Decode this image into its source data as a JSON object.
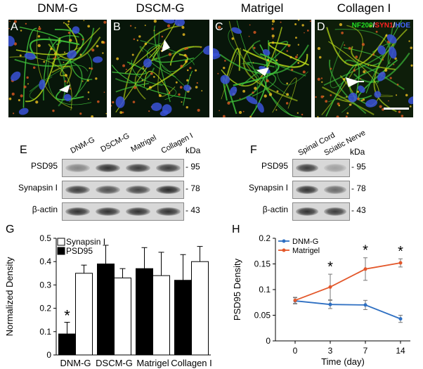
{
  "micrographs": {
    "titles": [
      "DNM-G",
      "DSCM-G",
      "Matrigel",
      "Collagen I"
    ],
    "letters": [
      "A",
      "B",
      "C",
      "D"
    ],
    "stain_legend": [
      {
        "text": "NF200",
        "color": "#22dd22"
      },
      {
        "text": "/",
        "color": "#ffffff"
      },
      {
        "text": "SYN1",
        "color": "#ff2222"
      },
      {
        "text": "/",
        "color": "#ffffff"
      },
      {
        "text": "HOE",
        "color": "#4466ff"
      }
    ]
  },
  "blot_e": {
    "letter": "E",
    "lanes": [
      "DNM-G",
      "DSCM-G",
      "Matrigel",
      "Collagen I"
    ],
    "kda_label": "kDa",
    "rows": [
      {
        "label": "PSD95",
        "kda": "95",
        "intensity": [
          0.45,
          0.9,
          0.85,
          0.85
        ]
      },
      {
        "label": "Synapsin I",
        "kda": "78",
        "intensity": [
          0.85,
          0.75,
          0.8,
          0.95
        ]
      },
      {
        "label": "β-actin",
        "kda": "43",
        "intensity": [
          0.9,
          0.9,
          0.9,
          0.9
        ]
      }
    ]
  },
  "blot_f": {
    "letter": "F",
    "lanes": [
      "Spinal Cord",
      "Sciatic Nerve"
    ],
    "kda_label": "kDa",
    "rows": [
      {
        "label": "PSD95",
        "kda": "95",
        "intensity": [
          0.85,
          0.3
        ]
      },
      {
        "label": "Synapsin I",
        "kda": "78",
        "intensity": [
          0.9,
          0.6
        ]
      },
      {
        "label": "β-actin",
        "kda": "43",
        "intensity": [
          0.9,
          0.85
        ]
      }
    ]
  },
  "chart_data": [
    {
      "type": "bar",
      "panel": "G",
      "categories": [
        "DNM-G",
        "DSCM-G",
        "Matrigel",
        "Collagen I"
      ],
      "series": [
        {
          "name": "PSD95",
          "values": [
            0.09,
            0.39,
            0.37,
            0.32
          ],
          "errors": [
            0.05,
            0.08,
            0.09,
            0.11
          ],
          "color": "#000000"
        },
        {
          "name": "Synapsin I",
          "values": [
            0.35,
            0.33,
            0.34,
            0.4
          ],
          "errors": [
            0.035,
            0.04,
            0.1,
            0.065
          ],
          "color": "#ffffff"
        }
      ],
      "ylabel": "Normalized  Density",
      "ylim": [
        0,
        0.5
      ],
      "yticks": [
        "0",
        "0.1",
        "0.2",
        "0.3",
        "0.4",
        "0.5"
      ],
      "yticks_values": [
        0,
        0.1,
        0.2,
        0.3,
        0.4,
        0.5
      ],
      "annotations": [
        {
          "text": "*",
          "category": "DNM-G",
          "series": "PSD95"
        }
      ],
      "legend_position": "top-left"
    },
    {
      "type": "line",
      "panel": "H",
      "x": [
        0,
        3,
        7,
        14
      ],
      "xticks": [
        "0",
        "3",
        "7",
        "14"
      ],
      "series": [
        {
          "name": "DNM-G",
          "values": [
            0.078,
            0.071,
            0.07,
            0.043
          ],
          "errors": [
            0.006,
            0.008,
            0.009,
            0.007
          ],
          "color": "#2e6fc2"
        },
        {
          "name": "Matrigel",
          "values": [
            0.079,
            0.105,
            0.14,
            0.152
          ],
          "errors": [
            0.006,
            0.025,
            0.022,
            0.008
          ],
          "color": "#e3572a"
        }
      ],
      "xlabel": "Time (day)",
      "ylabel": "PSD95 Density",
      "ylim": [
        0,
        0.2
      ],
      "yticks": [
        "0",
        "0.05",
        "0.1",
        "0.15",
        "0.2"
      ],
      "yticks_values": [
        0,
        0.05,
        0.1,
        0.15,
        0.2
      ],
      "annotations": [
        {
          "text": "*",
          "x": 3
        },
        {
          "text": "*",
          "x": 7
        },
        {
          "text": "*",
          "x": 14
        }
      ],
      "legend_position": "top-left"
    }
  ]
}
